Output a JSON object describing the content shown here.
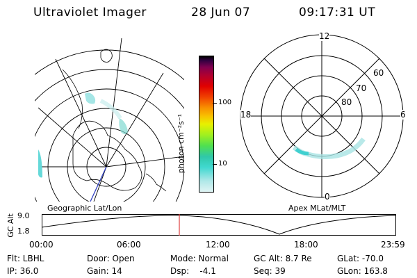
{
  "header": {
    "instrument": "Ultraviolet Imager",
    "date": "28 Jun 07",
    "time": "09:17:31 UT"
  },
  "colorbar": {
    "label": "photon cm⁻²s⁻¹",
    "ticks": [
      "100",
      "10"
    ],
    "colors": [
      "#e0f4f4",
      "#b0e8e8",
      "#40d8d0",
      "#30c8a8",
      "#50e050",
      "#a0f020",
      "#e8f000",
      "#f8c000",
      "#f89000",
      "#f04000",
      "#e00000",
      "#b00030",
      "#800050",
      "#300040",
      "#000000"
    ]
  },
  "polar_plot": {
    "mlt_labels": [
      "12",
      "18",
      "6",
      "0"
    ],
    "mlat_labels": [
      "60",
      "70",
      "80"
    ]
  },
  "map_labels": {
    "left": "Geographic Lat/Lon",
    "right": "Apex MLat/MLT"
  },
  "timeline": {
    "ylabel": "GC Alt",
    "yticks": [
      "9.0",
      "1.8"
    ],
    "xticks": [
      "00:00",
      "06:00",
      "12:00",
      "18:00",
      "23:59"
    ],
    "marker_time": "09:17:31"
  },
  "info": {
    "flt": "Flt: LBHL",
    "ip": "IP: 36.0",
    "door": "Door: Open",
    "gain": "Gain: 14",
    "mode": "Mode: Normal",
    "dsp": "Dsp:    -4.1",
    "gcalt": "GC Alt: 8.7 Re",
    "seq": "Seq: 39",
    "glat": "GLat: -70.0",
    "glon": "GLon: 163.8"
  }
}
